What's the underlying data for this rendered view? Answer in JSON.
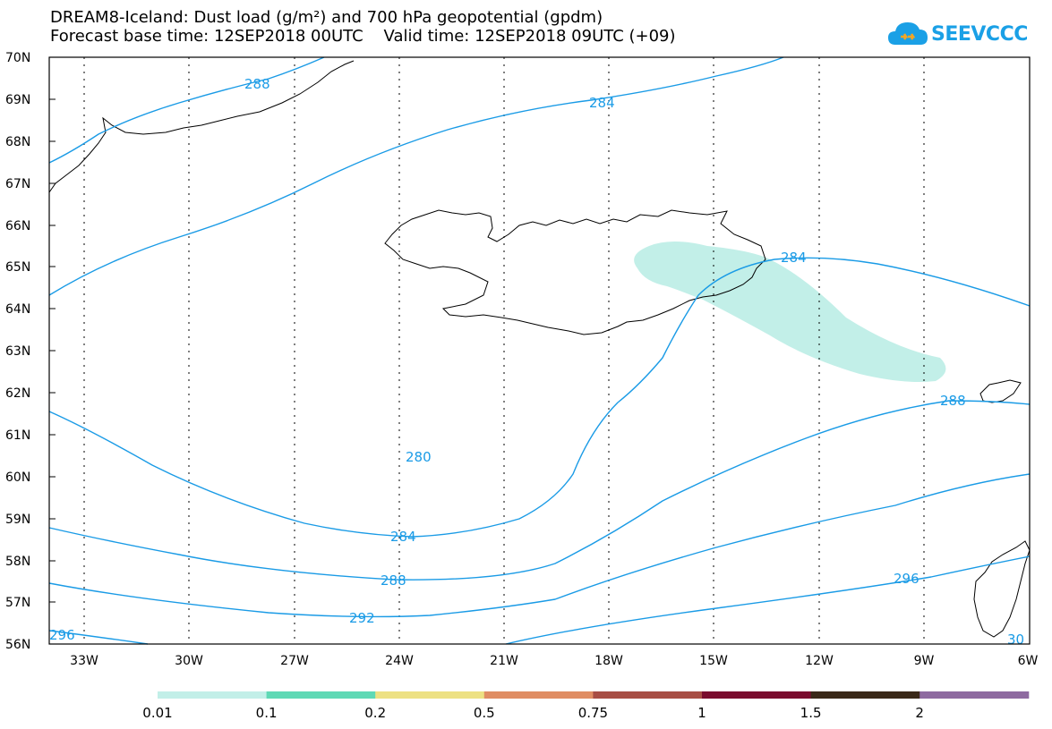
{
  "title_line1": "DREAM8-Iceland: Dust load (g/m²) and 700 hPa geopotential (gpdm)",
  "title_line2": "Forecast base time: 12SEP2018 00UTC    Valid time: 12SEP2018 09UTC (+09)",
  "logo_text": "SEEVCCC",
  "colors": {
    "contour": "#1a9be6",
    "dust_0_01": "#c2efe8",
    "coast": "#000000"
  },
  "axes": {
    "lat_labels": [
      "70N",
      "69N",
      "68N",
      "67N",
      "66N",
      "65N",
      "64N",
      "63N",
      "62N",
      "61N",
      "60N",
      "59N",
      "58N",
      "57N",
      "56N"
    ],
    "lon_labels": [
      "33W",
      "30W",
      "27W",
      "24W",
      "21W",
      "18W",
      "15W",
      "12W",
      "9W",
      "6W"
    ],
    "lat_range": [
      56,
      70
    ],
    "lon_range": [
      -34,
      -6
    ],
    "grid": true
  },
  "contour_labels": [
    {
      "id": "c288-top",
      "text": "288"
    },
    {
      "id": "c284-top",
      "text": "284"
    },
    {
      "id": "c284-iceland",
      "text": "284"
    },
    {
      "id": "c288-east",
      "text": "288"
    },
    {
      "id": "c280",
      "text": "280"
    },
    {
      "id": "c284-low",
      "text": "284"
    },
    {
      "id": "c288-low",
      "text": "288"
    },
    {
      "id": "c292",
      "text": "292"
    },
    {
      "id": "c296-sw",
      "text": "296"
    },
    {
      "id": "c296-se",
      "text": "296"
    },
    {
      "id": "c300",
      "text": "30"
    }
  ],
  "colorbar": {
    "labels": [
      "0.01",
      "0.1",
      "0.2",
      "0.5",
      "0.75",
      "1",
      "1.5",
      "2"
    ],
    "colors": [
      "#c2efe8",
      "#5fd9b5",
      "#ede183",
      "#e08d63",
      "#a84e45",
      "#7a0c2e",
      "#3a2818",
      "#8e6aa0"
    ]
  }
}
